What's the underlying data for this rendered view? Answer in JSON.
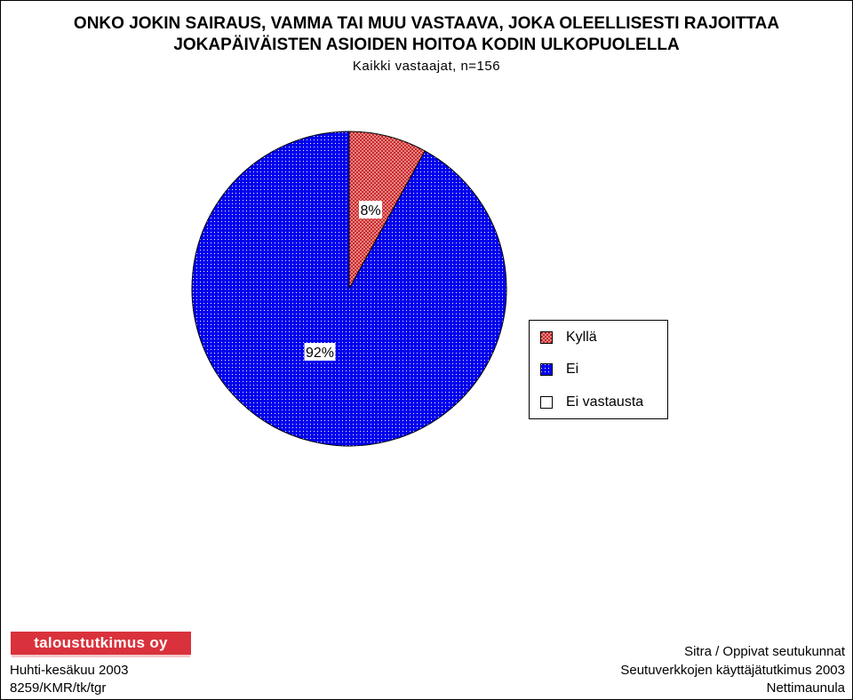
{
  "title_line1": "ONKO JOKIN SAIRAUS, VAMMA TAI MUU VASTAAVA, JOKA OLEELLISESTI RAJOITTAA",
  "title_line2": "JOKAPÄIVÄISTEN ASIOIDEN HOITOA KODIN ULKOPUOLELLA",
  "subtitle": "Kaikki vastaajat, n=156",
  "chart_data": {
    "type": "pie",
    "title": "ONKO JOKIN SAIRAUS, VAMMA TAI MUU VASTAAVA, JOKA OLEELLISESTI RAJOITTAA JOKAPÄIVÄISTEN ASIOIDEN HOITOA KODIN ULKOPUOLELLA",
    "subtitle": "Kaikki vastaajat, n=156",
    "categories": [
      "Kyllä",
      "Ei",
      "Ei vastausta"
    ],
    "values": [
      8,
      92,
      0
    ],
    "labels": [
      "8%",
      "92%",
      ""
    ],
    "colors": [
      "#f07070",
      "#0000ee",
      "#ffffff"
    ],
    "legend_position": "right"
  },
  "legend": {
    "items": [
      {
        "label": "Kyllä",
        "pattern": "crosshatch-red"
      },
      {
        "label": "Ei",
        "pattern": "dots-blue"
      },
      {
        "label": "Ei vastausta",
        "pattern": "white"
      }
    ]
  },
  "footer": {
    "logo_text": "taloustutkimus oy",
    "left_line1": "Huhti-kesäkuu 2003",
    "left_line2": "8259/KMR/tk/tgr",
    "right_line1": "Sitra / Oppivat seutukunnat",
    "right_line2": "Seutuverkkojen käyttäjätutkimus 2003",
    "right_line3": "Nettimaunula"
  }
}
